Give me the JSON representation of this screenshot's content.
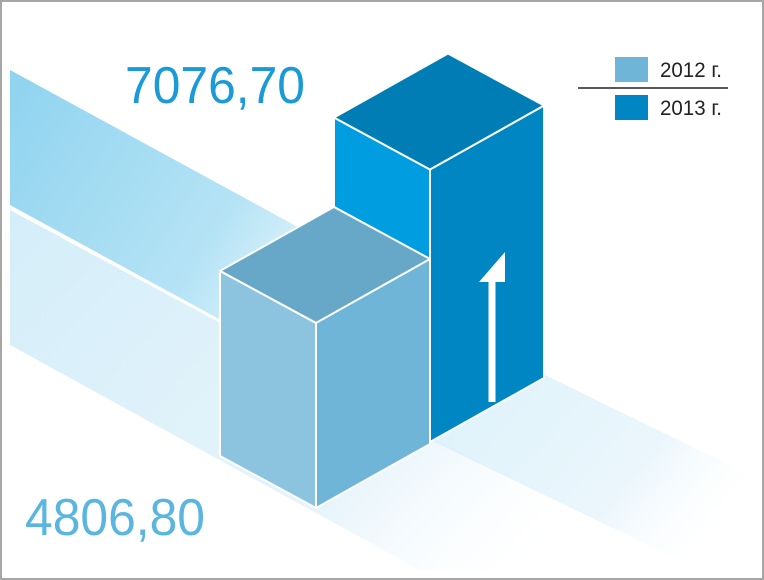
{
  "chart_data": {
    "type": "bar3d",
    "series": [
      {
        "name": "2012 г.",
        "color": "#6fb5d8",
        "values": [
          4806.8
        ],
        "value_labels": [
          "4806,80"
        ]
      },
      {
        "name": "2013 г.",
        "color": "#0086c3",
        "values": [
          7076.7
        ],
        "value_labels": [
          "7076,70"
        ]
      }
    ]
  }
}
